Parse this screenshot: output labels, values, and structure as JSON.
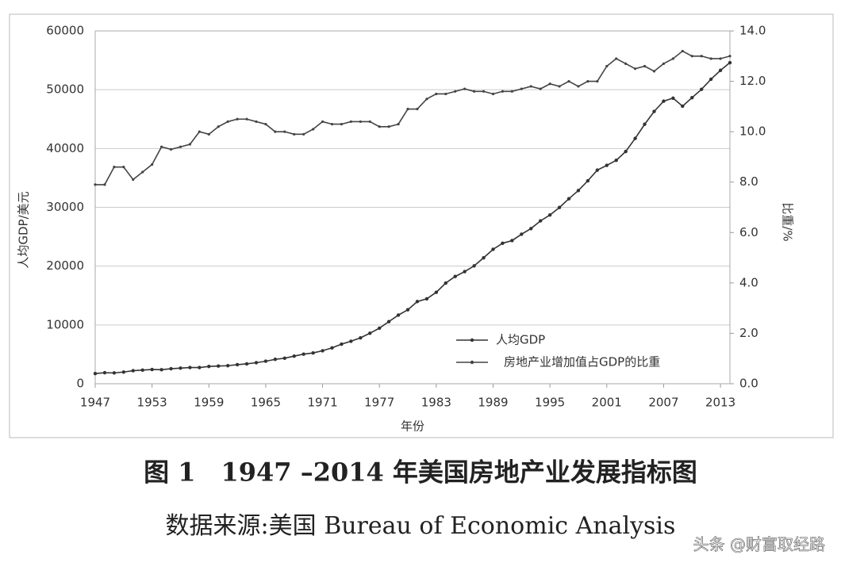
{
  "chart_data": {
    "type": "line",
    "x_label": "年份",
    "y_label": "人均GDP/美元",
    "y2_label": "比重/%",
    "x": [
      1947,
      1948,
      1949,
      1950,
      1951,
      1952,
      1953,
      1954,
      1955,
      1956,
      1957,
      1958,
      1959,
      1960,
      1961,
      1962,
      1963,
      1964,
      1965,
      1966,
      1967,
      1968,
      1969,
      1970,
      1971,
      1972,
      1973,
      1974,
      1975,
      1976,
      1977,
      1978,
      1979,
      1980,
      1981,
      1982,
      1983,
      1984,
      1985,
      1986,
      1987,
      1988,
      1989,
      1990,
      1991,
      1992,
      1993,
      1994,
      1995,
      1996,
      1997,
      1998,
      1999,
      2000,
      2001,
      2002,
      2003,
      2004,
      2005,
      2006,
      2007,
      2008,
      2009,
      2010,
      2011,
      2012,
      2013,
      2014
    ],
    "series": [
      {
        "name": "人均GDP",
        "color": "#333333",
        "values": [
          1733,
          1870,
          1838,
          1987,
          2218,
          2313,
          2413,
          2384,
          2557,
          2654,
          2755,
          2749,
          2945,
          3007,
          3067,
          3244,
          3375,
          3574,
          3828,
          4147,
          4336,
          4696,
          5032,
          5234,
          5609,
          6094,
          6726,
          7226,
          7801,
          8592,
          9453,
          10565,
          11674,
          12575,
          13976,
          14434,
          15544,
          17121,
          18237,
          19071,
          20039,
          21417,
          22857,
          23889,
          24342,
          25419,
          26387,
          27695,
          28691,
          29968,
          31459,
          32854,
          34515,
          36330,
          37134,
          37998,
          39490,
          41725,
          44123,
          46302,
          48050,
          48570,
          47195,
          48651,
          50066,
          51784,
          53291,
          54599
        ]
      },
      {
        "name": "房地产业增加值占GDP的比重",
        "color": "#444444",
        "axis": "y2",
        "values": [
          7.9,
          7.9,
          8.6,
          8.6,
          8.1,
          8.4,
          8.7,
          9.4,
          9.3,
          9.4,
          9.5,
          10.0,
          9.9,
          10.2,
          10.4,
          10.5,
          10.5,
          10.4,
          10.3,
          10.0,
          10.0,
          9.9,
          9.9,
          10.1,
          10.4,
          10.3,
          10.3,
          10.4,
          10.4,
          10.4,
          10.2,
          10.2,
          10.3,
          10.9,
          10.9,
          11.3,
          11.5,
          11.5,
          11.6,
          11.7,
          11.6,
          11.6,
          11.5,
          11.6,
          11.6,
          11.7,
          11.8,
          11.7,
          11.9,
          11.8,
          12.0,
          11.8,
          12.0,
          12.0,
          12.6,
          12.9,
          12.7,
          12.5,
          12.6,
          12.4,
          12.7,
          12.9,
          13.2,
          13.0,
          13.0,
          12.9,
          12.9,
          13.0
        ]
      }
    ],
    "xlim": [
      1947,
      2014
    ],
    "xticks": [
      1947,
      1953,
      1959,
      1965,
      1971,
      1977,
      1983,
      1989,
      1995,
      2001,
      2007,
      2013
    ],
    "ylim": [
      0,
      60000
    ],
    "yticks": [
      0,
      10000,
      20000,
      30000,
      40000,
      50000,
      60000
    ],
    "y2lim": [
      0,
      14
    ],
    "y2ticks": [
      {
        "value": 0,
        "label": "0.0"
      },
      {
        "value": 2,
        "label": "2.0"
      },
      {
        "value": 4,
        "label": "4.0"
      },
      {
        "value": 6,
        "label": "6.0"
      },
      {
        "value": 8,
        "label": "8.0"
      },
      {
        "value": 10,
        "label": "10.0"
      },
      {
        "value": 12,
        "label": "12.0"
      },
      {
        "value": 14,
        "label": "14.0"
      }
    ],
    "grid": true,
    "legend": "lower right"
  },
  "caption": "图 1　1947 –2014 年美国房地产业发展指标图",
  "source": "数据来源:美国 Bureau of Economic Analysis",
  "watermark": "头条 @财富取经路"
}
